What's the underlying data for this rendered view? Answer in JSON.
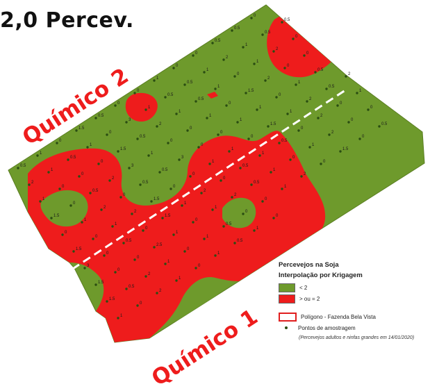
{
  "title": "2,0 Percev.",
  "zones": {
    "top": "Químico 2",
    "bottom": "Químico 1"
  },
  "colors": {
    "below_threshold": "#6e9a2c",
    "above_threshold": "#ee1c1c",
    "divider": "#ffffff"
  },
  "legend": {
    "title_line1": "Percevejos na Soja",
    "title_line2": "Interpolação por Krigagem",
    "class_low": "< 2",
    "class_high": "> ou = 2",
    "polygon": "Polígono - Fazenda Bela Vista",
    "points": "Pontos de amostragem",
    "note": "(Percevejos adultos e ninfas grandes em 14/01/2020)"
  },
  "sample_values": [
    "0.5",
    "1",
    "0",
    "1.5",
    "0.5",
    "0",
    "0",
    "1",
    "0",
    "0",
    "0.5",
    "0.5",
    "0",
    "2",
    "1",
    "0.5",
    "1",
    "0",
    "3",
    "1",
    "0.5",
    "0.5",
    "1",
    "2",
    "1",
    "0.5",
    "0.5",
    "1",
    "0",
    "0",
    "0",
    "1.5",
    "0.5",
    "2",
    "1",
    "0.5",
    "1",
    "0",
    "1",
    "2",
    "0",
    "1.5",
    "0",
    "0.5",
    "2",
    "3",
    "1",
    "0",
    "0",
    "1",
    "0",
    "1.5",
    "2",
    "0",
    "0",
    "0",
    "1",
    "2",
    "0",
    "0.5",
    "0.5",
    "3",
    "0",
    "0",
    "1",
    "1",
    "0",
    "1",
    "0.5",
    "1.5",
    "0",
    "1",
    "2",
    "1.5",
    "0",
    "0",
    "1",
    "1",
    "0",
    "1.5",
    "1",
    "2",
    "0.5",
    "2",
    "3",
    "0",
    "0.5",
    "0",
    "1.5",
    "1",
    "2",
    "0",
    "0.5",
    "1",
    "0.5",
    "0",
    "2",
    "0",
    "1",
    "1.5",
    "0",
    "0",
    "2.5",
    "1",
    "0",
    "1",
    "2",
    "0.5",
    "1",
    "0",
    "1",
    "2",
    "0",
    "0",
    "1.5",
    "0.5",
    "2",
    "1",
    "0",
    "1",
    "0.5",
    "0",
    "0",
    "1",
    "2",
    "0",
    "1.5",
    "0",
    "0.5",
    "1",
    "0",
    "2",
    "1",
    "0",
    "1",
    "0.5",
    "1",
    "0"
  ]
}
